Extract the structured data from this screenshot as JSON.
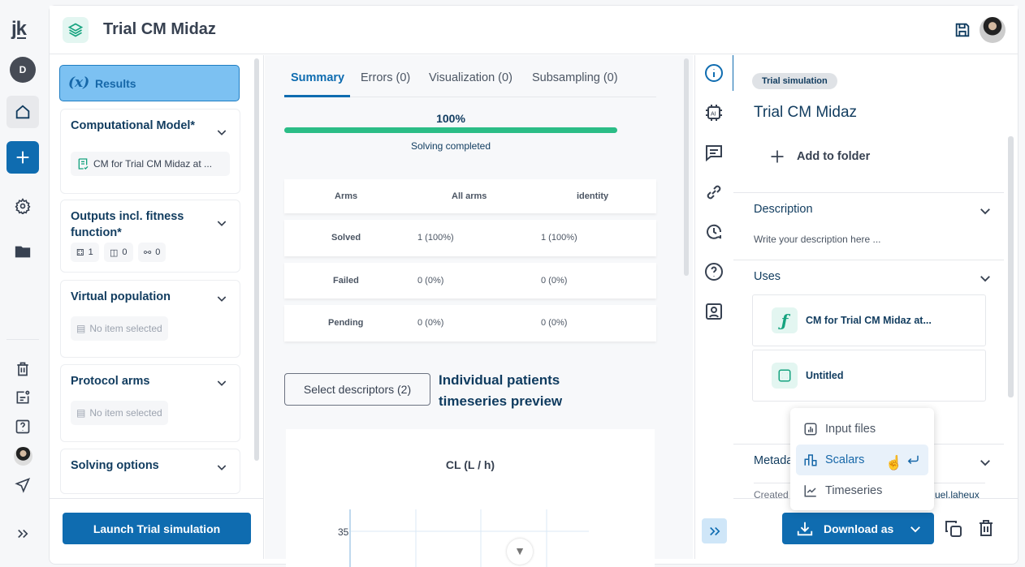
{
  "rail": {
    "logo": "jk",
    "user_initial": "D"
  },
  "header": {
    "title": "Trial CM Midaz"
  },
  "left": {
    "results_label": "Results",
    "results_icon_text": "(x)",
    "sections": [
      {
        "title": "Computational Model*",
        "item": "CM for Trial CM Midaz at ..."
      },
      {
        "title": "Outputs incl. fitness function*",
        "counts": [
          "1",
          "0",
          "0"
        ]
      },
      {
        "title": "Virtual population",
        "item": "No item selected"
      },
      {
        "title": "Protocol arms",
        "item": "No item selected"
      },
      {
        "title": "Solving options"
      }
    ],
    "launch_label": "Launch Trial simulation"
  },
  "center": {
    "tabs": [
      "Summary",
      "Errors (0)",
      "Visualization (0)",
      "Subsampling (0)"
    ],
    "progress": {
      "percent_label": "100%",
      "value": 100,
      "status": "Solving completed",
      "color": "#2bbd86"
    },
    "table": {
      "headers": [
        "Arms",
        "All arms",
        "identity"
      ],
      "rows": [
        [
          "Solved",
          "1 (100%)",
          "1 (100%)"
        ],
        [
          "Failed",
          "0 (0%)",
          "0 (0%)"
        ],
        [
          "Pending",
          "0 (0%)",
          "0 (0%)"
        ]
      ]
    },
    "descriptors_button": "Select descriptors (2)",
    "preview_title": "Individual patients timeseries preview"
  },
  "chart_data": {
    "type": "line",
    "title": "CL (L / h)",
    "yticks": [
      "35"
    ],
    "grid": true,
    "series": []
  },
  "right": {
    "badge": "Trial simulation",
    "title": "Trial CM Midaz",
    "add_folder": "Add to folder",
    "description_label": "Description",
    "description_placeholder": "Write your description here ...",
    "uses_label": "Uses",
    "uses": [
      {
        "name": "CM for Trial CM Midaz at...",
        "icon": "function-icon"
      },
      {
        "name": "Untitled",
        "icon": "output-icon"
      }
    ],
    "metadata_label": "Metadata",
    "created_label": "Created",
    "created_by": "uel.laheux",
    "download_label": "Download as"
  },
  "menu": {
    "items": [
      "Input files",
      "Scalars",
      "Timeseries"
    ],
    "selected": 1
  },
  "colors": {
    "primary": "#0f6cb0",
    "accent_green": "#2bbd86",
    "results_bg": "#7cc1f2"
  }
}
